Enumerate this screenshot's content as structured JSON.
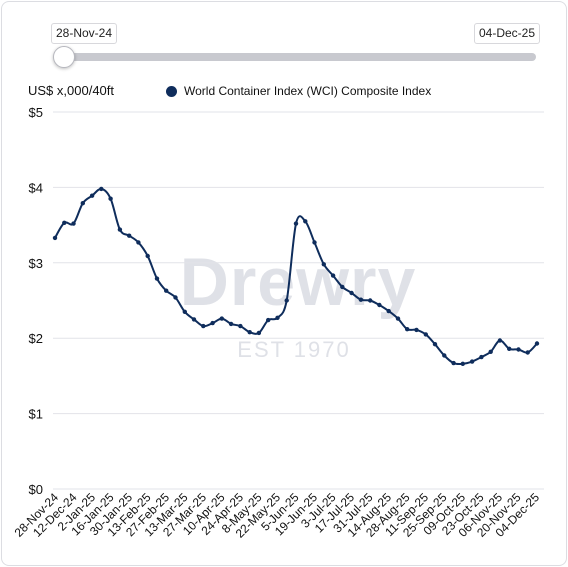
{
  "range": {
    "start_label": "28-Nov-24",
    "end_label": "04-Dec-25"
  },
  "unit_label": "US$ x,000/40ft",
  "legend": {
    "label": "World Container Index (WCI) Composite Index"
  },
  "watermark": {
    "brand": "Drewry",
    "since": "EST 1970"
  },
  "colors": {
    "line": "#0f2d5c",
    "grid": "#e2e3e8",
    "axis_text": "#111111",
    "watermark": "#dfe1e7"
  },
  "chart_data": {
    "type": "line",
    "title": "",
    "xlabel": "",
    "ylabel": "US$ x,000/40ft",
    "ylim": [
      0,
      5
    ],
    "yticks": [
      {
        "value": 0,
        "label": "$0"
      },
      {
        "value": 1,
        "label": "$1"
      },
      {
        "value": 2,
        "label": "$2"
      },
      {
        "value": 3,
        "label": "$3"
      },
      {
        "value": 4,
        "label": "$4"
      },
      {
        "value": 5,
        "label": "$5"
      }
    ],
    "x_tick_labels": [
      "28-Nov-24",
      "12-Dec-24",
      "2-Jan-25",
      "16-Jan-25",
      "30-Jan-25",
      "13-Feb-25",
      "27-Feb-25",
      "13-Mar-25",
      "27-Mar-25",
      "10-Apr-25",
      "24-Apr-25",
      "8-May-25",
      "22-May-25",
      "5-Jun-25",
      "19-Jun-25",
      "3-Jul-25",
      "17-Jul-25",
      "31-Jul-25",
      "14-Aug-25",
      "28-Aug-25",
      "11-Sep-25",
      "25-Sep-25",
      "09-Oct-25",
      "23-Oct-25",
      "06-Nov-25",
      "20-Nov-25",
      "04-Dec-25"
    ],
    "grid": true,
    "legend_position": "top",
    "series": [
      {
        "name": "World Container Index (WCI) Composite Index",
        "values": [
          3.33,
          3.53,
          3.52,
          3.79,
          3.89,
          3.98,
          3.85,
          3.44,
          3.36,
          3.27,
          3.09,
          2.79,
          2.63,
          2.54,
          2.35,
          2.25,
          2.16,
          2.2,
          2.26,
          2.19,
          2.16,
          2.08,
          2.07,
          2.24,
          2.27,
          2.5,
          3.52,
          3.55,
          3.27,
          2.98,
          2.83,
          2.68,
          2.6,
          2.51,
          2.5,
          2.44,
          2.36,
          2.26,
          2.12,
          2.11,
          2.05,
          1.92,
          1.77,
          1.67,
          1.66,
          1.69,
          1.75,
          1.82,
          1.97,
          1.86,
          1.85,
          1.81,
          1.93
        ]
      }
    ]
  }
}
